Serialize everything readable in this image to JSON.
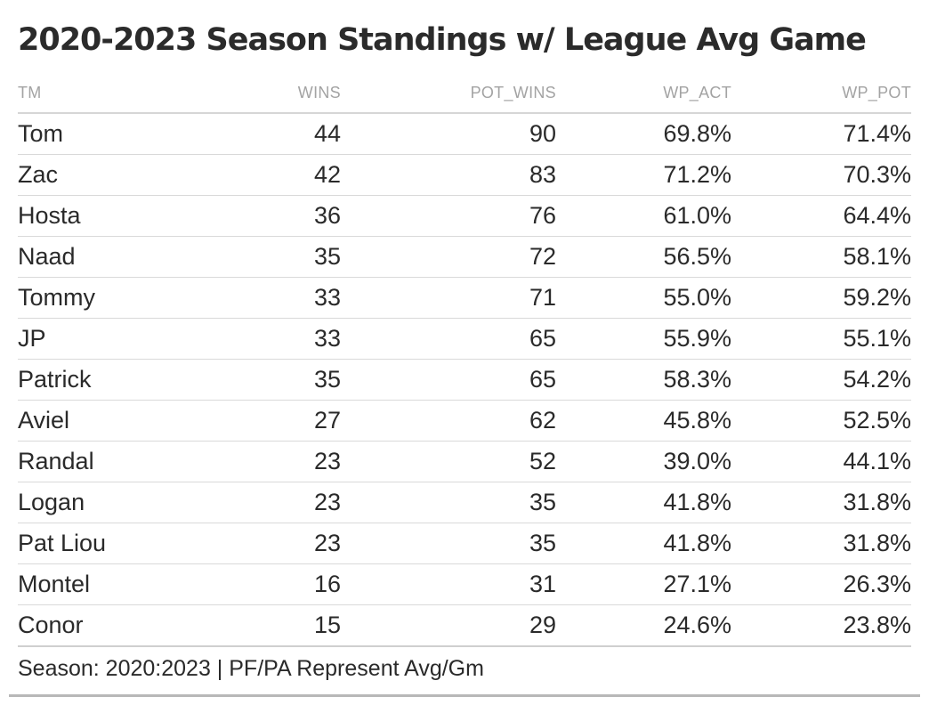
{
  "title": "2020-2023 Season Standings w/ League Avg Game",
  "columns": [
    "TM",
    "WINS",
    "POT_WINS",
    "WP_ACT",
    "WP_POT"
  ],
  "rows": [
    {
      "tm": "Tom",
      "wins": "44",
      "pot_wins": "90",
      "wp_act": "69.8%",
      "wp_pot": "71.4%"
    },
    {
      "tm": "Zac",
      "wins": "42",
      "pot_wins": "83",
      "wp_act": "71.2%",
      "wp_pot": "70.3%"
    },
    {
      "tm": "Hosta",
      "wins": "36",
      "pot_wins": "76",
      "wp_act": "61.0%",
      "wp_pot": "64.4%"
    },
    {
      "tm": "Naad",
      "wins": "35",
      "pot_wins": "72",
      "wp_act": "56.5%",
      "wp_pot": "58.1%"
    },
    {
      "tm": "Tommy",
      "wins": "33",
      "pot_wins": "71",
      "wp_act": "55.0%",
      "wp_pot": "59.2%"
    },
    {
      "tm": "JP",
      "wins": "33",
      "pot_wins": "65",
      "wp_act": "55.9%",
      "wp_pot": "55.1%"
    },
    {
      "tm": "Patrick",
      "wins": "35",
      "pot_wins": "65",
      "wp_act": "58.3%",
      "wp_pot": "54.2%"
    },
    {
      "tm": "Aviel",
      "wins": "27",
      "pot_wins": "62",
      "wp_act": "45.8%",
      "wp_pot": "52.5%"
    },
    {
      "tm": "Randal",
      "wins": "23",
      "pot_wins": "52",
      "wp_act": "39.0%",
      "wp_pot": "44.1%"
    },
    {
      "tm": "Logan",
      "wins": "23",
      "pot_wins": "35",
      "wp_act": "41.8%",
      "wp_pot": "31.8%"
    },
    {
      "tm": "Pat Liou",
      "wins": "23",
      "pot_wins": "35",
      "wp_act": "41.8%",
      "wp_pot": "31.8%"
    },
    {
      "tm": "Montel",
      "wins": "16",
      "pot_wins": "31",
      "wp_act": "27.1%",
      "wp_pot": "26.3%"
    },
    {
      "tm": "Conor",
      "wins": "15",
      "pot_wins": "29",
      "wp_act": "24.6%",
      "wp_pot": "23.8%"
    }
  ],
  "footer": "Season: 2020:2023 | PF/PA Represent Avg/Gm"
}
